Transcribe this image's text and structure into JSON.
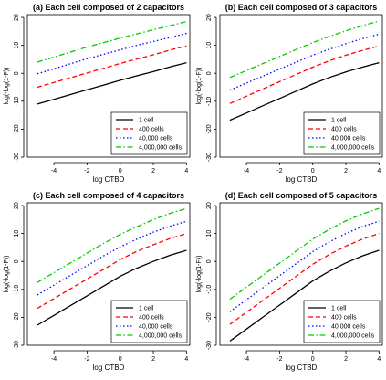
{
  "chart_data": [
    {
      "type": "line",
      "title": "(a) Each cell composed of 2 capacitors",
      "xlabel": "log CTBD",
      "ylabel": "log(-log(1-F))",
      "xlim": [
        -5.6,
        4.2
      ],
      "ylim": [
        -30,
        21
      ],
      "xticks": [
        -4,
        -2,
        0,
        2,
        4
      ],
      "xtick_labels": [
        "-4",
        "-2",
        "0",
        "2",
        "4"
      ],
      "yticks": [
        -30,
        -20,
        -10,
        0,
        10,
        20
      ],
      "ytick_labels": [
        "-30",
        "-20",
        "-10",
        "0",
        "10",
        "20"
      ],
      "grid": false,
      "legend_position": "bottom-right",
      "x": [
        -5,
        -4,
        -3,
        -2,
        -1,
        0,
        1,
        2,
        3,
        4
      ],
      "series": [
        {
          "name": "1 cell",
          "color": "#000000",
          "dash": "solid",
          "values": [
            -11,
            -9.3,
            -7.6,
            -5.9,
            -4.2,
            -2.5,
            -0.9,
            0.6,
            2.3,
            3.8
          ]
        },
        {
          "name": "400 cells",
          "color": "#ff0000",
          "dash": "dashed",
          "values": [
            -5,
            -3.3,
            -1.6,
            0.1,
            1.8,
            3.5,
            5.1,
            6.6,
            8.3,
            9.8
          ]
        },
        {
          "name": "40,000 cells",
          "color": "#0000ff",
          "dash": "dotted",
          "values": [
            -0.2,
            1.6,
            3.4,
            5.2,
            6.8,
            8.4,
            10,
            11.4,
            12.8,
            14.3
          ]
        },
        {
          "name": "4,000,000 cells",
          "color": "#00cc00",
          "dash": "dashdot",
          "values": [
            4,
            5.8,
            7.6,
            9.4,
            11,
            12.6,
            14.1,
            15.6,
            17,
            18.5
          ]
        }
      ]
    },
    {
      "type": "line",
      "title": "(b) Each cell composed of 3 capacitors",
      "xlabel": "log CTBD",
      "ylabel": "log(-log(1-F))",
      "xlim": [
        -5.6,
        4.2
      ],
      "ylim": [
        -30,
        21
      ],
      "xticks": [
        -4,
        -2,
        0,
        2,
        4
      ],
      "xtick_labels": [
        "-4",
        "-2",
        "0",
        "2",
        "4"
      ],
      "yticks": [
        -30,
        -20,
        -10,
        0,
        10,
        20
      ],
      "ytick_labels": [
        "-30",
        "-20",
        "-10",
        "0",
        "10",
        "20"
      ],
      "grid": false,
      "legend_position": "bottom-right",
      "x": [
        -5,
        -4,
        -3,
        -2,
        -1,
        0,
        1,
        2,
        3,
        4
      ],
      "series": [
        {
          "name": "1 cell",
          "color": "#000000",
          "dash": "solid",
          "values": [
            -16.8,
            -14.2,
            -11.6,
            -9,
            -6.4,
            -3.8,
            -1.5,
            0.5,
            2.2,
            3.8
          ]
        },
        {
          "name": "400 cells",
          "color": "#ff0000",
          "dash": "dashed",
          "values": [
            -10.8,
            -8.2,
            -5.6,
            -3,
            -0.4,
            2.2,
            4.5,
            6.5,
            8.2,
            9.8
          ]
        },
        {
          "name": "40,000 cells",
          "color": "#0000ff",
          "dash": "dotted",
          "values": [
            -6,
            -3.5,
            -1,
            1.5,
            4,
            6.5,
            8.6,
            10.6,
            12.4,
            14
          ]
        },
        {
          "name": "4,000,000 cells",
          "color": "#00cc00",
          "dash": "dashdot",
          "values": [
            -1.5,
            1,
            3.5,
            6,
            8.5,
            11,
            13.2,
            15.2,
            17,
            18.7
          ]
        }
      ]
    },
    {
      "type": "line",
      "title": "(c) Each cell composed of 4 capacitors",
      "xlabel": "log CTBD",
      "ylabel": "log(-log(1-F))",
      "xlim": [
        -5.6,
        4.2
      ],
      "ylim": [
        -30,
        21
      ],
      "xticks": [
        -4,
        -2,
        0,
        2,
        4
      ],
      "xtick_labels": [
        "-4",
        "-2",
        "0",
        "2",
        "4"
      ],
      "yticks": [
        -30,
        -20,
        -10,
        0,
        10,
        20
      ],
      "ytick_labels": [
        "-30",
        "-20",
        "-10",
        "0",
        "10",
        "20"
      ],
      "grid": false,
      "legend_position": "bottom-right",
      "x": [
        -5,
        -4,
        -3,
        -2,
        -1,
        0,
        1,
        2,
        3,
        4
      ],
      "series": [
        {
          "name": "1 cell",
          "color": "#000000",
          "dash": "solid",
          "values": [
            -22.8,
            -19.3,
            -15.8,
            -12.3,
            -8.8,
            -5.3,
            -2.4,
            0,
            2.2,
            4
          ]
        },
        {
          "name": "400 cells",
          "color": "#ff0000",
          "dash": "dashed",
          "values": [
            -16.8,
            -13.3,
            -9.8,
            -6.3,
            -2.8,
            0.7,
            3.6,
            6,
            8.2,
            10
          ]
        },
        {
          "name": "40,000 cells",
          "color": "#0000ff",
          "dash": "dotted",
          "values": [
            -12,
            -8.5,
            -5,
            -1.5,
            2,
            5.2,
            8,
            10.5,
            12.6,
            14.4
          ]
        },
        {
          "name": "4,000,000 cells",
          "color": "#00cc00",
          "dash": "dashdot",
          "values": [
            -7.5,
            -4,
            -0.5,
            3,
            6.5,
            9.7,
            12.4,
            15,
            17.2,
            19
          ]
        }
      ]
    },
    {
      "type": "line",
      "title": "(d) Each cell composed of 5 capacitors",
      "xlabel": "log CTBD",
      "ylabel": "log(-log(1-F))",
      "xlim": [
        -5.6,
        4.2
      ],
      "ylim": [
        -30,
        21
      ],
      "xticks": [
        -4,
        -2,
        0,
        2,
        4
      ],
      "xtick_labels": [
        "-4",
        "-2",
        "0",
        "2",
        "4"
      ],
      "yticks": [
        -30,
        -20,
        -10,
        0,
        10,
        20
      ],
      "ytick_labels": [
        "-30",
        "-20",
        "-10",
        "0",
        "10",
        "20"
      ],
      "grid": false,
      "legend_position": "bottom-right",
      "x": [
        -5,
        -4,
        -3,
        -2,
        -1,
        0,
        1,
        2,
        3,
        4
      ],
      "series": [
        {
          "name": "1 cell",
          "color": "#000000",
          "dash": "solid",
          "values": [
            -28.5,
            -24.2,
            -19.9,
            -15.6,
            -11.3,
            -7,
            -3.5,
            -0.5,
            2,
            4
          ]
        },
        {
          "name": "400 cells",
          "color": "#ff0000",
          "dash": "dashed",
          "values": [
            -22.5,
            -18.2,
            -13.9,
            -9.6,
            -5.3,
            -1,
            2.5,
            5.5,
            8,
            10
          ]
        },
        {
          "name": "40,000 cells",
          "color": "#0000ff",
          "dash": "dotted",
          "values": [
            -18,
            -13.7,
            -9.4,
            -5.1,
            -0.8,
            3.5,
            7,
            10,
            12.5,
            14.4
          ]
        },
        {
          "name": "4,000,000 cells",
          "color": "#00cc00",
          "dash": "dashdot",
          "values": [
            -13.5,
            -9.2,
            -4.9,
            -0.6,
            3.7,
            8,
            11.5,
            14.5,
            17,
            19
          ]
        }
      ]
    }
  ]
}
